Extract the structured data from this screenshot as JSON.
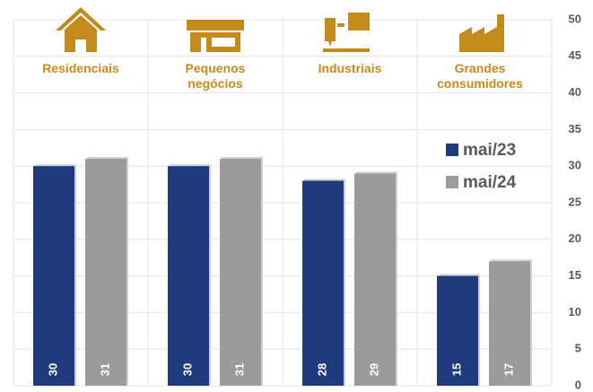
{
  "chart_data": {
    "type": "bar",
    "categories": [
      "Residenciais",
      "Pequenos negócios",
      "Industriais",
      "Grandes consumidores"
    ],
    "series": [
      {
        "name": "mai/23",
        "color": "#1f3b7d",
        "values": [
          30,
          30,
          28,
          15
        ]
      },
      {
        "name": "mai/24",
        "color": "#9b9b9b",
        "values": [
          31,
          31,
          29,
          17
        ]
      }
    ],
    "ylim": [
      0,
      50
    ],
    "yticks": [
      0,
      5,
      10,
      15,
      20,
      25,
      30,
      35,
      40,
      45,
      50
    ],
    "grid": true
  }
}
